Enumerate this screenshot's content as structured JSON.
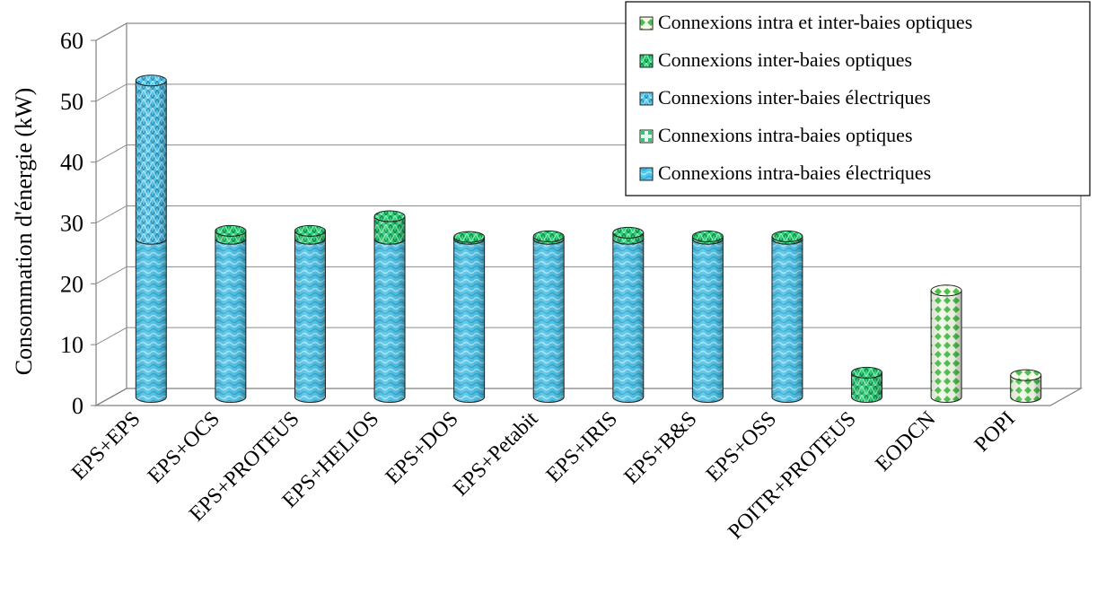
{
  "chart_data": {
    "type": "bar",
    "ylabel": "Consommation d'énergie (kW)",
    "xlabel": "",
    "ylim": [
      0,
      60
    ],
    "yticks": [
      0,
      10,
      20,
      30,
      40,
      50,
      60
    ],
    "grid": true,
    "legend_position": "top-right",
    "stacked": true,
    "categories": [
      "EPS+EPS",
      "EPS+OCS",
      "EPS+PROTEUS",
      "EPS+HELIOS",
      "EPS+DOS",
      "EPS+Petabit",
      "EPS+IRIS",
      "EPS+B&S",
      "EPS+OSS",
      "POITR+PROTEUS",
      "EODCN",
      "POPI"
    ],
    "series": [
      {
        "name": "Connexions intra-baies électriques",
        "color": "#4fc3e8",
        "pattern": "wave",
        "values": [
          26,
          26,
          26,
          26,
          26,
          26,
          26,
          26,
          26,
          0,
          0,
          0
        ]
      },
      {
        "name": "Connexions intra-baies optiques",
        "color": "#2ecc71",
        "pattern": "grid",
        "values": [
          0,
          0,
          0,
          0,
          0,
          0,
          0,
          0,
          0,
          0,
          0,
          0
        ]
      },
      {
        "name": "Connexions inter-baies électriques",
        "color": "#4fc3e8",
        "pattern": "zigzag",
        "values": [
          26,
          0,
          0,
          0,
          0,
          0,
          0,
          0,
          0,
          0,
          0,
          0
        ]
      },
      {
        "name": "Connexions inter-baies optiques",
        "color": "#1ec76e",
        "pattern": "zigzag",
        "values": [
          0,
          1.3,
          1.3,
          3.7,
          0.3,
          0.4,
          1.0,
          0.4,
          0.4,
          4.0,
          0,
          0
        ]
      },
      {
        "name": "Connexions intra et inter-baies optiques",
        "color": "#4ad06a",
        "pattern": "diamond",
        "values": [
          0,
          0,
          0,
          0,
          0,
          0,
          0,
          0,
          0,
          0,
          17.5,
          3.6
        ]
      }
    ],
    "legend_order": [
      4,
      3,
      2,
      1,
      0
    ]
  }
}
